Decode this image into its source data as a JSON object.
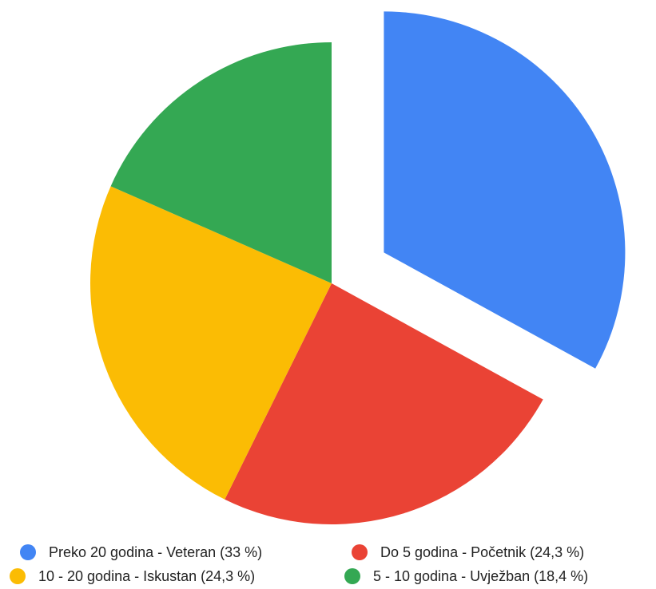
{
  "chart_data": {
    "type": "pie",
    "categories": [
      "Preko 20 godina - Veteran (33 %)",
      "Do 5 godina - Početnik (24,3 %)",
      "10 - 20 godina - Iskustan (24,3 %)",
      "5 - 10 godina - Uvježban (18,4 %)"
    ],
    "values": [
      33,
      24.3,
      24.3,
      18.4
    ],
    "colors": [
      "#4285f4",
      "#ea4335",
      "#fbbc04",
      "#34a853"
    ],
    "exploded": [
      0
    ],
    "legend": "bottom"
  }
}
